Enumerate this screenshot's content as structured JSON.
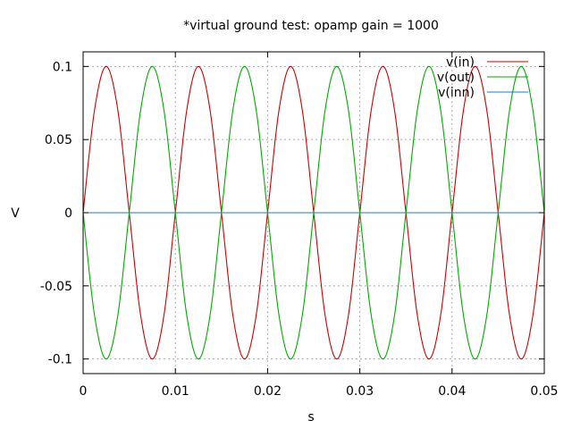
{
  "chart_data": {
    "type": "line",
    "title": "*virtual ground test: opamp gain = 1000",
    "xlabel": "s",
    "ylabel": "V",
    "xlim": [
      0,
      0.05
    ],
    "ylim": [
      -0.11,
      0.11
    ],
    "grid": true,
    "legend_position": "top-right",
    "x_ticks": [
      {
        "value": 0,
        "label": "0"
      },
      {
        "value": 0.01,
        "label": "0.01"
      },
      {
        "value": 0.02,
        "label": "0.02"
      },
      {
        "value": 0.03,
        "label": "0.03"
      },
      {
        "value": 0.04,
        "label": "0.04"
      },
      {
        "value": 0.05,
        "label": "0.05"
      }
    ],
    "y_ticks": [
      {
        "value": 0.1,
        "label": "0.1"
      },
      {
        "value": 0.05,
        "label": "0.05"
      },
      {
        "value": 0,
        "label": "0"
      },
      {
        "value": -0.05,
        "label": "-0.05"
      },
      {
        "value": -0.1,
        "label": "-0.1"
      }
    ],
    "series": [
      {
        "name": "v(in)",
        "color": "#cc0000",
        "x": [
          0,
          0.00125,
          0.0025,
          0.00375,
          0.005,
          0.00625,
          0.0075,
          0.00875,
          0.01,
          0.01125,
          0.0125,
          0.01375,
          0.015,
          0.01625,
          0.0175,
          0.01875,
          0.02,
          0.02125,
          0.0225,
          0.02375,
          0.025,
          0.02625,
          0.0275,
          0.02875,
          0.03,
          0.03125,
          0.0325,
          0.03375,
          0.035,
          0.03625,
          0.0375,
          0.03875,
          0.04,
          0.04125,
          0.0425,
          0.04375,
          0.045,
          0.04625,
          0.0475,
          0.04875,
          0.05
        ],
        "y": [
          0,
          0.0707,
          0.1,
          0.0707,
          0,
          -0.0707,
          -0.1,
          -0.0707,
          0,
          0.0707,
          0.1,
          0.0707,
          0,
          -0.0707,
          -0.1,
          -0.0707,
          0,
          0.0707,
          0.1,
          0.0707,
          0,
          -0.0707,
          -0.1,
          -0.0707,
          0,
          0.0707,
          0.1,
          0.0707,
          0,
          -0.0707,
          -0.1,
          -0.0707,
          0,
          0.0707,
          0.1,
          0.0707,
          0,
          -0.0707,
          -0.1,
          -0.0707,
          0
        ]
      },
      {
        "name": "v(out)",
        "color": "#00aa00",
        "x": [
          0,
          0.00125,
          0.0025,
          0.00375,
          0.005,
          0.00625,
          0.0075,
          0.00875,
          0.01,
          0.01125,
          0.0125,
          0.01375,
          0.015,
          0.01625,
          0.0175,
          0.01875,
          0.02,
          0.02125,
          0.0225,
          0.02375,
          0.025,
          0.02625,
          0.0275,
          0.02875,
          0.03,
          0.03125,
          0.0325,
          0.03375,
          0.035,
          0.03625,
          0.0375,
          0.03875,
          0.04,
          0.04125,
          0.0425,
          0.04375,
          0.045,
          0.04625,
          0.0475,
          0.04875,
          0.05
        ],
        "y": [
          0,
          -0.0707,
          -0.1,
          -0.0707,
          0,
          0.0707,
          0.1,
          0.0707,
          0,
          -0.0707,
          -0.1,
          -0.0707,
          0,
          0.0707,
          0.1,
          0.0707,
          0,
          -0.0707,
          -0.1,
          -0.0707,
          0,
          0.0707,
          0.1,
          0.0707,
          0,
          -0.0707,
          -0.1,
          -0.0707,
          0,
          0.0707,
          0.1,
          0.0707,
          0,
          -0.0707,
          -0.1,
          -0.0707,
          0,
          0.0707,
          0.1,
          0.0707,
          0
        ]
      },
      {
        "name": "v(inn)",
        "color": "#1f78c8",
        "x": [
          0,
          0.05
        ],
        "y": [
          0,
          0
        ]
      }
    ]
  }
}
